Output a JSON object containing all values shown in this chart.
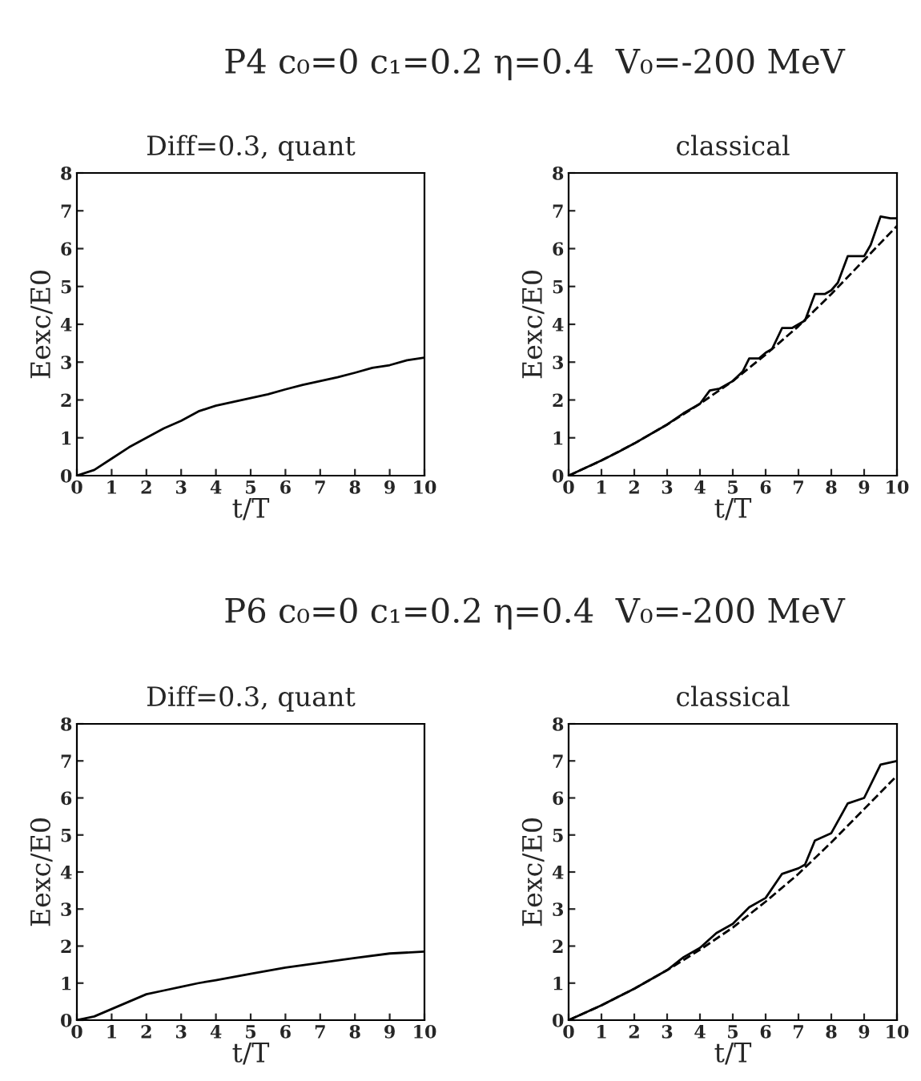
{
  "chart_data": [
    {
      "type": "line",
      "title": "Diff=0.3, quant",
      "xlabel": "t/T",
      "ylabel": "Eexc/E0",
      "annotations": [
        "P4 c₀=0 c₁=0.2 η=0.4  V₀=-200 MeV"
      ],
      "xlim": [
        0,
        10
      ],
      "ylim": [
        0,
        8
      ],
      "xticks": [
        0,
        1,
        2,
        3,
        4,
        5,
        6,
        7,
        8,
        9,
        10
      ],
      "yticks": [
        0,
        1,
        2,
        3,
        4,
        5,
        6,
        7,
        8
      ],
      "series": [
        {
          "color": "#000000",
          "line_style": "solid",
          "x": [
            0,
            0.5,
            1,
            1.5,
            2,
            2.5,
            3,
            3.5,
            4,
            4.5,
            5,
            5.5,
            6,
            6.5,
            7,
            7.5,
            8,
            8.5,
            9,
            9.5,
            10
          ],
          "values": [
            0,
            0.15,
            0.45,
            0.75,
            1.0,
            1.25,
            1.45,
            1.7,
            1.85,
            1.95,
            2.05,
            2.15,
            2.28,
            2.4,
            2.5,
            2.6,
            2.72,
            2.85,
            2.92,
            3.05,
            3.12
          ]
        }
      ]
    },
    {
      "type": "line",
      "title": "classical",
      "xlabel": "t/T",
      "ylabel": "Eexc/E0",
      "xlim": [
        0,
        10
      ],
      "ylim": [
        0,
        8
      ],
      "xticks": [
        0,
        1,
        2,
        3,
        4,
        5,
        6,
        7,
        8,
        9,
        10
      ],
      "yticks": [
        0,
        1,
        2,
        3,
        4,
        5,
        6,
        7,
        8
      ],
      "series": [
        {
          "color": "#000000",
          "line_style": "solid",
          "x": [
            0,
            0.5,
            1,
            1.5,
            2,
            2.5,
            3,
            3.5,
            4,
            4.3,
            4.6,
            5,
            5.3,
            5.5,
            5.8,
            6,
            6.2,
            6.5,
            6.8,
            7,
            7.2,
            7.5,
            7.8,
            8,
            8.2,
            8.5,
            8.8,
            9,
            9.2,
            9.5,
            9.8,
            10
          ],
          "values": [
            0,
            0.2,
            0.4,
            0.62,
            0.85,
            1.1,
            1.35,
            1.65,
            1.9,
            2.25,
            2.3,
            2.5,
            2.75,
            3.1,
            3.1,
            3.25,
            3.35,
            3.9,
            3.9,
            4.0,
            4.1,
            4.8,
            4.8,
            4.9,
            5.1,
            5.8,
            5.8,
            5.8,
            6.1,
            6.85,
            6.8,
            6.8
          ]
        },
        {
          "color": "#000000",
          "line_style": "dashed",
          "x": [
            0,
            1,
            2,
            3,
            4,
            5,
            6,
            7,
            8,
            9,
            10
          ],
          "values": [
            0,
            0.4,
            0.85,
            1.35,
            1.9,
            2.5,
            3.2,
            3.95,
            4.8,
            5.7,
            6.6
          ]
        }
      ]
    },
    {
      "type": "line",
      "title": "Diff=0.3, quant",
      "xlabel": "t/T",
      "ylabel": "Eexc/E0",
      "annotations": [
        "P6 c₀=0 c₁=0.2 η=0.4  V₀=-200 MeV"
      ],
      "xlim": [
        0,
        10
      ],
      "ylim": [
        0,
        8
      ],
      "xticks": [
        0,
        1,
        2,
        3,
        4,
        5,
        6,
        7,
        8,
        9,
        10
      ],
      "yticks": [
        0,
        1,
        2,
        3,
        4,
        5,
        6,
        7,
        8
      ],
      "series": [
        {
          "color": "#000000",
          "line_style": "solid",
          "x": [
            0,
            0.5,
            1,
            1.5,
            2,
            2.5,
            3,
            3.5,
            4,
            5,
            6,
            7,
            8,
            9,
            10
          ],
          "values": [
            0,
            0.1,
            0.3,
            0.5,
            0.7,
            0.8,
            0.9,
            1.0,
            1.08,
            1.25,
            1.42,
            1.55,
            1.68,
            1.8,
            1.85
          ]
        }
      ]
    },
    {
      "type": "line",
      "title": "classical",
      "xlabel": "t/T",
      "ylabel": "Eexc/E0",
      "xlim": [
        0,
        10
      ],
      "ylim": [
        0,
        8
      ],
      "xticks": [
        0,
        1,
        2,
        3,
        4,
        5,
        6,
        7,
        8,
        9,
        10
      ],
      "yticks": [
        0,
        1,
        2,
        3,
        4,
        5,
        6,
        7,
        8
      ],
      "series": [
        {
          "color": "#000000",
          "line_style": "solid",
          "x": [
            0,
            1,
            2,
            3,
            3.5,
            4,
            4.5,
            5,
            5.5,
            6,
            6.5,
            7,
            7.2,
            7.5,
            8,
            8.5,
            9,
            9.5,
            10
          ],
          "values": [
            0,
            0.4,
            0.85,
            1.35,
            1.7,
            1.95,
            2.35,
            2.6,
            3.05,
            3.3,
            3.95,
            4.1,
            4.2,
            4.85,
            5.05,
            5.85,
            6.0,
            6.9,
            7.0
          ]
        },
        {
          "color": "#000000",
          "line_style": "dashed",
          "x": [
            0,
            1,
            2,
            3,
            4,
            5,
            6,
            7,
            8,
            9,
            10
          ],
          "values": [
            0,
            0.4,
            0.85,
            1.35,
            1.9,
            2.5,
            3.2,
            3.95,
            4.8,
            5.7,
            6.6
          ]
        }
      ]
    }
  ]
}
